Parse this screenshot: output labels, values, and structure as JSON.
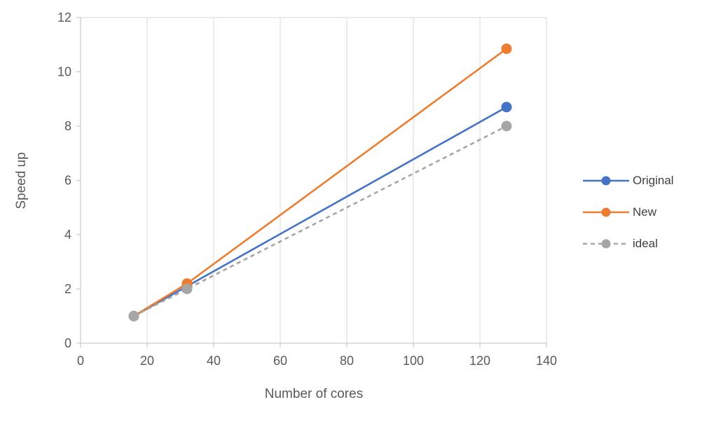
{
  "chart_data": {
    "type": "line",
    "title": "",
    "xlabel": "Number of cores",
    "ylabel": "Speed up",
    "xlim": [
      0,
      140
    ],
    "ylim": [
      0,
      12
    ],
    "x_ticks": [
      0,
      20,
      40,
      60,
      80,
      100,
      120,
      140
    ],
    "y_ticks": [
      0,
      2,
      4,
      6,
      8,
      10,
      12
    ],
    "grid": "vertical-major",
    "legend_position": "right",
    "colors": {
      "gridline": "#d9d9d9",
      "axis": "#bfbfbf",
      "tick_text": "#595959"
    },
    "series": [
      {
        "name": "Original",
        "color": "#4472c4",
        "style": "solid",
        "marker": "circle",
        "x": [
          16,
          32,
          128
        ],
        "values": [
          1,
          2.1,
          8.7
        ]
      },
      {
        "name": "New",
        "color": "#ed7d31",
        "style": "solid",
        "marker": "circle",
        "x": [
          16,
          32,
          128
        ],
        "values": [
          1,
          2.2,
          10.85
        ]
      },
      {
        "name": "ideal",
        "color": "#a6a6a6",
        "style": "dashed",
        "marker": "circle",
        "x": [
          16,
          32,
          128
        ],
        "values": [
          1,
          2,
          8
        ]
      }
    ]
  }
}
